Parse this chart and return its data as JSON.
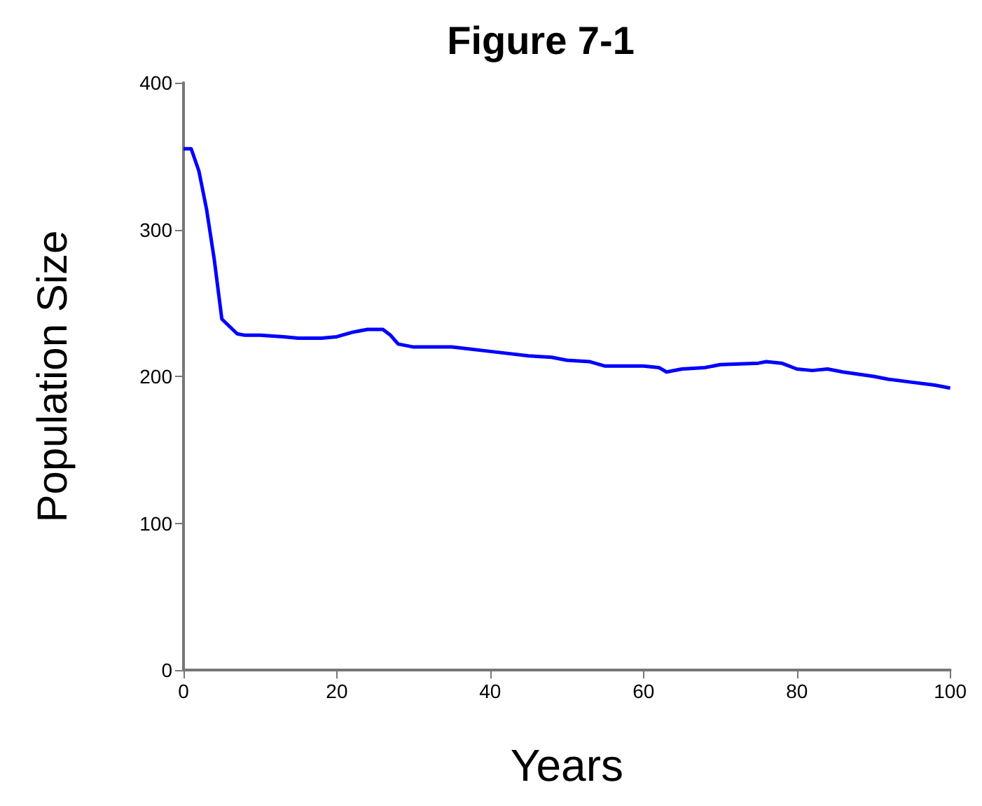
{
  "chart_data": {
    "type": "line",
    "title": "Figure 7-1",
    "xlabel": "Years",
    "ylabel": "Population Size",
    "x": [
      0,
      1,
      2,
      3,
      4,
      5,
      6,
      7,
      8,
      10,
      13,
      15,
      18,
      20,
      22,
      24,
      26,
      27,
      28,
      30,
      35,
      40,
      45,
      48,
      50,
      53,
      55,
      60,
      62,
      63,
      65,
      68,
      70,
      75,
      76,
      78,
      80,
      82,
      84,
      86,
      90,
      92,
      95,
      98,
      100
    ],
    "series": [
      {
        "color": "#0000ff",
        "values": [
          355,
          355,
          340,
          314,
          280,
          239,
          234,
          229,
          228,
          228,
          227,
          226,
          226,
          227,
          230,
          232,
          232,
          228,
          222,
          220,
          220,
          217,
          214,
          213,
          211,
          210,
          207,
          207,
          206,
          203,
          205,
          206,
          208,
          209,
          210,
          209,
          205,
          204,
          205,
          203,
          200,
          198,
          196,
          194,
          192
        ]
      }
    ],
    "xlim": [
      0,
      100
    ],
    "ylim": [
      0,
      400
    ],
    "xticks": [
      0,
      20,
      40,
      60,
      80,
      100
    ],
    "yticks": [
      0,
      100,
      200,
      300,
      400
    ],
    "grid": false,
    "marker": "none",
    "line_style": "solid"
  }
}
